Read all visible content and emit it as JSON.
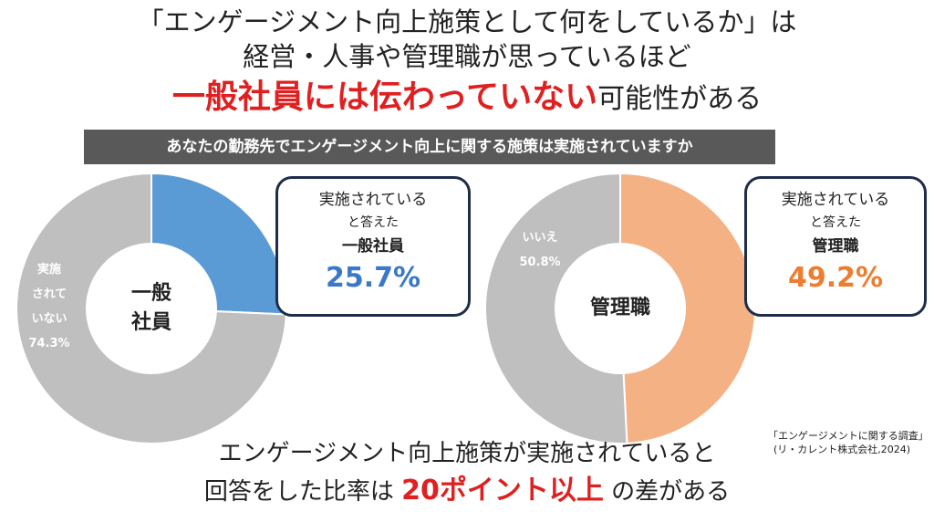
{
  "title": {
    "line1": "「エンゲージメント向上施策として何をしているか」は",
    "line2": "経営・人事や管理職が思っているほど",
    "line3_highlight": "一般社員には伝わっていない",
    "line3_rest": "可能性がある"
  },
  "question": "あなたの勤務先でエンゲージメント向上に関する施策は実施されていますか",
  "chart_data": [
    {
      "type": "pie",
      "center_label": [
        "一般",
        "社員"
      ],
      "slices": [
        {
          "label": "実施されている",
          "value": 25.7,
          "color": "#5b9bd5"
        },
        {
          "label": "実施されていない",
          "value": 74.3,
          "color": "#bfbfbf"
        }
      ],
      "slice_label_lines": [
        "実施",
        "されて",
        "いない",
        "74.3%"
      ],
      "callout": {
        "line1": "実施されている",
        "line2": "と答えた",
        "group": "一般社員",
        "value": "25.7%",
        "value_color": "#3a78c9"
      }
    },
    {
      "type": "pie",
      "center_label": [
        "管理職"
      ],
      "slices": [
        {
          "label": "実施されている",
          "value": 49.2,
          "color": "#f4b183"
        },
        {
          "label": "いいえ",
          "value": 50.8,
          "color": "#bfbfbf"
        }
      ],
      "slice_label_lines": [
        "いいえ",
        "50.8%"
      ],
      "callout": {
        "line1": "実施されている",
        "line2": "と答えた",
        "group": "管理職",
        "value": "49.2%",
        "value_color": "#ed7d31"
      }
    }
  ],
  "source": {
    "line1": "「エンゲージメントに関する調査」",
    "line2": "(リ・カレント株式会社,2024)"
  },
  "conclusion": {
    "line1": "エンゲージメント向上施策が実施されていると",
    "line2_pre": "回答をした比率は ",
    "line2_highlight": "20ポイント以上",
    "line2_post": " の差がある"
  }
}
